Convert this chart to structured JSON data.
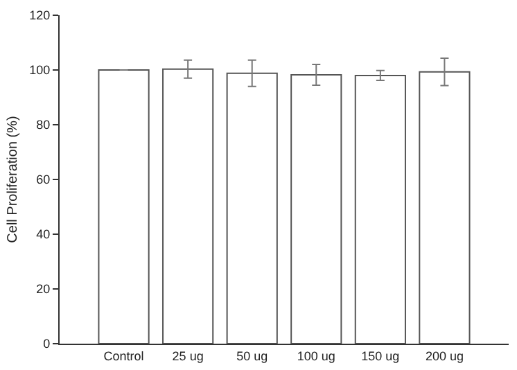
{
  "chart_data": {
    "type": "bar",
    "ylabel": "Cell Proliferation (%)",
    "categories": [
      "Control",
      "25 ug",
      "50 ug",
      "100 ug",
      "150 ug",
      "200 ug"
    ],
    "values": [
      100,
      100.3,
      98.8,
      98.2,
      98.0,
      99.3
    ],
    "errors": [
      null,
      3.3,
      4.8,
      3.8,
      1.8,
      5.0
    ],
    "color": "#ffffff",
    "ylim": [
      0,
      120
    ],
    "yticks": [
      0,
      20,
      40,
      60,
      80,
      100,
      120
    ],
    "grid": false,
    "legend": false
  }
}
